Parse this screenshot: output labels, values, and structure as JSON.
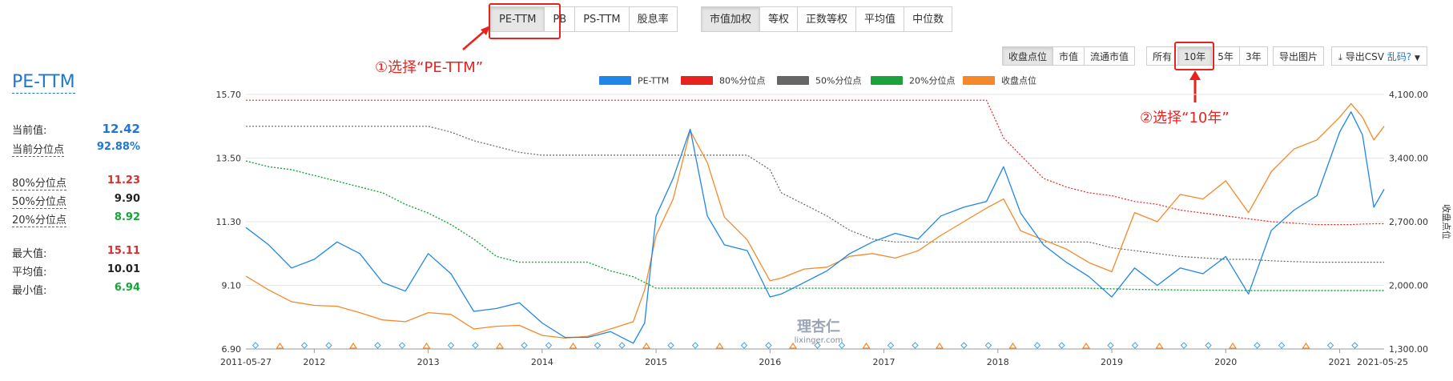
{
  "toolbar": {
    "metric_tabs": [
      "PE-TTM",
      "PB",
      "PS-TTM",
      "股息率"
    ],
    "metric_active": 0,
    "weight_tabs": [
      "市值加权",
      "等权",
      "正数等权",
      "平均值",
      "中位数"
    ],
    "weight_active": 0,
    "price_tabs": [
      "收盘点位",
      "市值",
      "流通市值"
    ],
    "price_active": 0,
    "range_tabs": [
      "所有",
      "10年",
      "5年",
      "3年"
    ],
    "range_active": 1,
    "export_image": "导出图片",
    "export_csv": "导出CSV",
    "garbled": "乱码?"
  },
  "annotations": {
    "step1": "①选择“PE-TTM”",
    "step2": "②选择“10年”"
  },
  "stats": {
    "title": "PE-TTM",
    "current_label": "当前值:",
    "current_value": "12.42",
    "percentile_label": "当前分位点",
    "percentile_value": "92.88%",
    "p80_label": "80%分位点",
    "p80_value": "11.23",
    "p50_label": "50%分位点",
    "p50_value": "9.90",
    "p20_label": "20%分位点",
    "p20_value": "8.92",
    "max_label": "最大值:",
    "max_value": "15.11",
    "avg_label": "平均值:",
    "avg_value": "10.01",
    "min_label": "最小值:",
    "min_value": "6.94"
  },
  "watermark": {
    "cn": "理杏仁",
    "en": "lixinger.com"
  },
  "colors": {
    "pe": "#1f86e8",
    "p80": "#e8231f",
    "p50": "#666666",
    "p20": "#1aa33b",
    "price": "#f5892a",
    "stat_blue": "#1f77d2",
    "stat_red": "#d62f2f",
    "stat_green": "#1aa33b"
  },
  "chart_data": {
    "type": "line",
    "legend": [
      "PE-TTM",
      "80%分位点",
      "50%分位点",
      "20%分位点",
      "收盘点位"
    ],
    "x_start": "2011-05-27",
    "x_end": "2021-05-25",
    "x_ticks": [
      "2011-05-27",
      "2012",
      "2013",
      "2014",
      "2015",
      "2016",
      "2017",
      "2018",
      "2019",
      "2020",
      "2021",
      "2021-05-25"
    ],
    "y_left": {
      "min": 6.9,
      "max": 15.7,
      "ticks": [
        "6.90",
        "9.10",
        "11.30",
        "13.50",
        "15.70"
      ]
    },
    "y_right": {
      "min": 1300,
      "max": 4100,
      "ticks": [
        "1,300.00",
        "2,000.00",
        "2,700.00",
        "3,400.00",
        "4,100.00"
      ],
      "label": "收盘点位"
    },
    "x": [
      2011.4,
      2011.6,
      2011.8,
      2012.0,
      2012.2,
      2012.4,
      2012.6,
      2012.8,
      2013.0,
      2013.2,
      2013.4,
      2013.6,
      2013.8,
      2014.0,
      2014.2,
      2014.4,
      2014.6,
      2014.8,
      2014.9,
      2015.0,
      2015.15,
      2015.3,
      2015.45,
      2015.6,
      2015.8,
      2016.0,
      2016.1,
      2016.3,
      2016.5,
      2016.7,
      2016.9,
      2017.1,
      2017.3,
      2017.5,
      2017.7,
      2017.9,
      2018.05,
      2018.2,
      2018.4,
      2018.6,
      2018.8,
      2019.0,
      2019.2,
      2019.4,
      2019.6,
      2019.8,
      2020.0,
      2020.2,
      2020.4,
      2020.6,
      2020.8,
      2021.0,
      2021.1,
      2021.2,
      2021.3,
      2021.39
    ],
    "series": [
      {
        "name": "PE-TTM",
        "axis": "left",
        "values": [
          11.1,
          10.5,
          9.7,
          10.0,
          10.6,
          10.2,
          9.2,
          8.9,
          10.2,
          9.5,
          8.2,
          8.3,
          8.5,
          7.8,
          7.3,
          7.3,
          7.5,
          7.1,
          7.8,
          11.5,
          12.8,
          14.5,
          11.5,
          10.5,
          10.3,
          8.7,
          8.8,
          9.2,
          9.6,
          10.2,
          10.6,
          10.9,
          10.7,
          11.5,
          11.8,
          12.0,
          13.2,
          11.6,
          10.5,
          9.9,
          9.4,
          8.7,
          9.7,
          9.1,
          9.7,
          9.5,
          10.1,
          8.8,
          11.0,
          11.7,
          12.2,
          14.4,
          15.1,
          14.3,
          11.8,
          12.42
        ]
      },
      {
        "name": "收盘点位",
        "axis": "right",
        "values": [
          2100,
          1950,
          1820,
          1780,
          1770,
          1700,
          1620,
          1600,
          1700,
          1680,
          1520,
          1550,
          1560,
          1450,
          1420,
          1440,
          1520,
          1600,
          1950,
          2550,
          2950,
          3700,
          3350,
          2750,
          2500,
          2050,
          2080,
          2180,
          2200,
          2320,
          2350,
          2300,
          2380,
          2550,
          2700,
          2850,
          2950,
          2600,
          2500,
          2400,
          2250,
          2150,
          2800,
          2700,
          3000,
          2950,
          3150,
          2800,
          3250,
          3500,
          3600,
          3850,
          4000,
          3850,
          3600,
          3750
        ]
      },
      {
        "name": "80%分位点",
        "axis": "left",
        "values": [
          15.5,
          15.5,
          15.5,
          15.5,
          15.5,
          15.5,
          15.5,
          15.5,
          15.5,
          15.5,
          15.5,
          15.5,
          15.5,
          15.5,
          15.5,
          15.5,
          15.5,
          15.5,
          15.5,
          15.5,
          15.5,
          15.5,
          15.5,
          15.5,
          15.5,
          15.5,
          15.5,
          15.5,
          15.5,
          15.5,
          15.5,
          15.5,
          15.5,
          15.5,
          15.5,
          15.5,
          14.2,
          13.6,
          12.8,
          12.5,
          12.3,
          12.2,
          12.0,
          11.9,
          11.7,
          11.6,
          11.5,
          11.4,
          11.3,
          11.25,
          11.2,
          11.2,
          11.2,
          11.22,
          11.23,
          11.23
        ]
      },
      {
        "name": "50%分位点",
        "axis": "left",
        "values": [
          14.6,
          14.6,
          14.6,
          14.6,
          14.6,
          14.6,
          14.6,
          14.6,
          14.6,
          14.4,
          14.1,
          13.9,
          13.7,
          13.6,
          13.6,
          13.6,
          13.6,
          13.6,
          13.6,
          13.6,
          13.6,
          13.6,
          13.6,
          13.6,
          13.6,
          13.1,
          12.3,
          11.9,
          11.5,
          11.0,
          10.7,
          10.6,
          10.6,
          10.6,
          10.6,
          10.6,
          10.6,
          10.6,
          10.6,
          10.6,
          10.6,
          10.4,
          10.3,
          10.2,
          10.1,
          10.05,
          10.0,
          10.0,
          9.95,
          9.92,
          9.9,
          9.9,
          9.9,
          9.9,
          9.9,
          9.9
        ]
      },
      {
        "name": "20%分位点",
        "axis": "left",
        "values": [
          13.4,
          13.2,
          13.1,
          12.9,
          12.7,
          12.5,
          12.3,
          11.9,
          11.6,
          11.2,
          10.7,
          10.1,
          9.9,
          9.9,
          9.9,
          9.9,
          9.6,
          9.4,
          9.2,
          9.0,
          9.0,
          9.0,
          9.0,
          9.0,
          9.0,
          9.0,
          9.0,
          9.0,
          9.0,
          9.0,
          9.0,
          9.0,
          9.0,
          9.0,
          9.0,
          9.0,
          9.0,
          9.0,
          9.0,
          9.0,
          9.0,
          8.98,
          8.96,
          8.95,
          8.94,
          8.93,
          8.93,
          8.92,
          8.92,
          8.92,
          8.92,
          8.92,
          8.92,
          8.92,
          8.92,
          8.92
        ]
      }
    ]
  }
}
